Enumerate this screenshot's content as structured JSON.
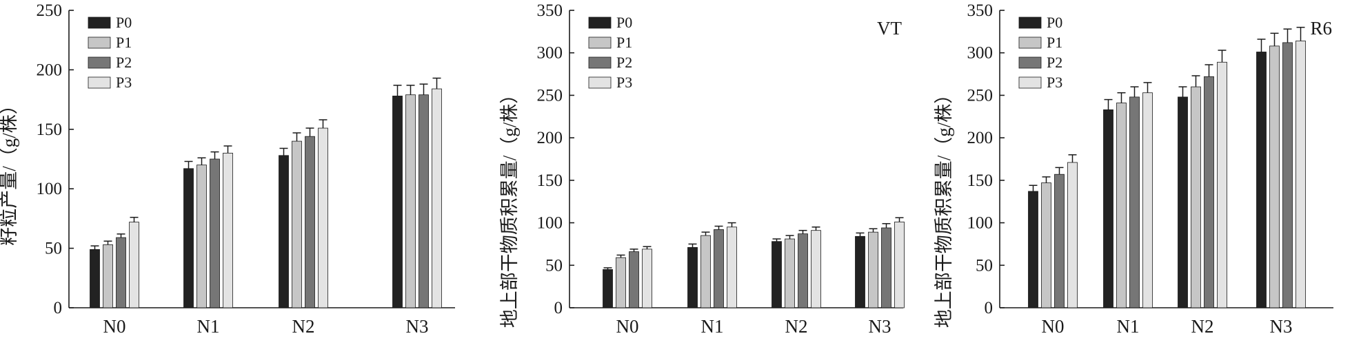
{
  "chart_data": [
    {
      "type": "bar",
      "tag": "",
      "ylabel": "籽粒产量/（g/株）",
      "xlabel": "",
      "ylim": [
        0,
        250
      ],
      "yticks": [
        0,
        50,
        100,
        150,
        200,
        250
      ],
      "categories": [
        "N0",
        "N1",
        "N2",
        "N3"
      ],
      "legend_position": "top-left",
      "series": [
        {
          "name": "P0",
          "values": [
            49,
            117,
            128,
            178
          ],
          "errors": [
            3,
            6,
            6,
            9
          ]
        },
        {
          "name": "P1",
          "values": [
            53,
            120,
            140,
            179
          ],
          "errors": [
            3,
            6,
            7,
            8
          ]
        },
        {
          "name": "P2",
          "values": [
            59,
            125,
            144,
            179
          ],
          "errors": [
            3,
            6,
            7,
            9
          ]
        },
        {
          "name": "P3",
          "values": [
            72,
            130,
            151,
            184
          ],
          "errors": [
            4,
            6,
            7,
            9
          ]
        }
      ]
    },
    {
      "type": "bar",
      "tag": "VT",
      "ylabel": "地上部干物质积累量/（g/株）",
      "xlabel": "",
      "ylim": [
        0,
        350
      ],
      "yticks": [
        0,
        50,
        100,
        150,
        200,
        250,
        300,
        350
      ],
      "categories": [
        "N0",
        "N1",
        "N2",
        "N3"
      ],
      "legend_position": "top-left",
      "series": [
        {
          "name": "P0",
          "values": [
            45,
            71,
            78,
            84
          ],
          "errors": [
            2,
            4,
            3,
            4
          ]
        },
        {
          "name": "P1",
          "values": [
            59,
            85,
            81,
            89
          ],
          "errors": [
            3,
            4,
            4,
            4
          ]
        },
        {
          "name": "P2",
          "values": [
            66,
            92,
            87,
            94
          ],
          "errors": [
            3,
            4,
            4,
            5
          ]
        },
        {
          "name": "P3",
          "values": [
            69,
            95,
            91,
            101
          ],
          "errors": [
            3,
            5,
            4,
            5
          ]
        }
      ]
    },
    {
      "type": "bar",
      "tag": "R6",
      "ylabel": "地上部干物质积累量/（g/株）",
      "xlabel": "",
      "ylim": [
        0,
        350
      ],
      "yticks": [
        0,
        50,
        100,
        150,
        200,
        250,
        300,
        350
      ],
      "categories": [
        "N0",
        "N1",
        "N2",
        "N3"
      ],
      "legend_position": "top-left",
      "series": [
        {
          "name": "P0",
          "values": [
            137,
            233,
            248,
            301
          ],
          "errors": [
            7,
            12,
            12,
            15
          ]
        },
        {
          "name": "P1",
          "values": [
            147,
            241,
            260,
            308
          ],
          "errors": [
            7,
            12,
            13,
            15
          ]
        },
        {
          "name": "P2",
          "values": [
            157,
            248,
            272,
            312
          ],
          "errors": [
            8,
            12,
            14,
            16
          ]
        },
        {
          "name": "P3",
          "values": [
            171,
            253,
            289,
            314
          ],
          "errors": [
            9,
            12,
            14,
            16
          ]
        }
      ]
    }
  ],
  "colors": {
    "P0": "#222222",
    "P1": "#c6c6c6",
    "P2": "#767676",
    "P3": "#e3e3e3",
    "axis": "#1a1a1a"
  }
}
